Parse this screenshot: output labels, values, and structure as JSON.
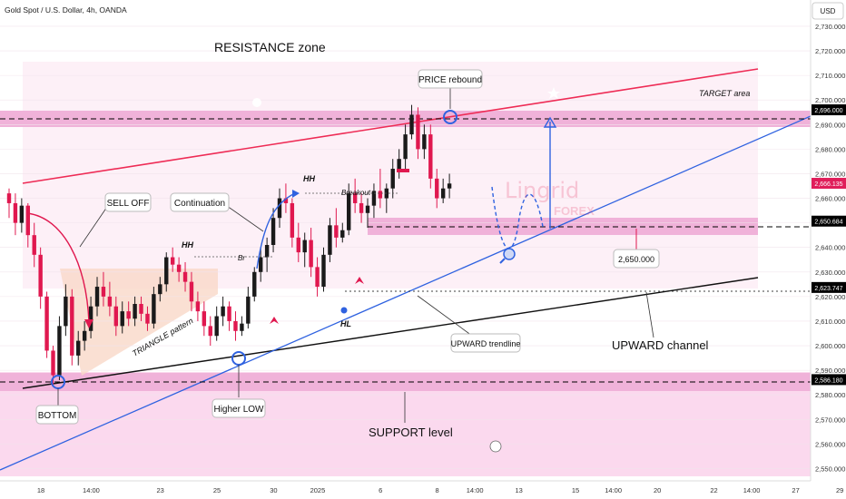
{
  "header": {
    "symbol": "Gold Spot / U.S. Dollar, 4h, OANDA",
    "currency_button": "USD"
  },
  "watermark": {
    "brand": "Lingrid",
    "sub": "FOREX"
  },
  "chart_data": {
    "type": "candlestick",
    "ylim": [
      2545,
      2737
    ],
    "price_ticks": [
      2730,
      2720,
      2710,
      2700,
      2690,
      2680,
      2670,
      2660,
      2650,
      2640,
      2630,
      2620,
      2610,
      2600,
      2590,
      2580,
      2570,
      2560,
      2550
    ],
    "price_tick_labels": [
      "2,730.000",
      "2,720.000",
      "2,710.000",
      "2,700.000",
      "2,690.000",
      "2,680.000",
      "2,670.000",
      "2,660.000",
      "2,650.000",
      "2,640.000",
      "2,630.000",
      "2,620.000",
      "2,610.000",
      "2,600.000",
      "2,590.000",
      "2,580.000",
      "2,570.000",
      "2,560.000",
      "2,550.000"
    ],
    "time_labels": [
      {
        "label": "18",
        "bar": 0
      },
      {
        "label": "14:00",
        "bar": 8
      },
      {
        "label": "23",
        "bar": 19
      },
      {
        "label": "25",
        "bar": 28
      },
      {
        "label": "30",
        "bar": 37
      },
      {
        "label": "2025",
        "bar": 44
      },
      {
        "label": "6",
        "bar": 54
      },
      {
        "label": "8",
        "bar": 63
      },
      {
        "label": "14:00",
        "bar": 69
      },
      {
        "label": "13",
        "bar": 76
      },
      {
        "label": "15",
        "bar": 85
      },
      {
        "label": "14:00",
        "bar": 91
      },
      {
        "label": "20",
        "bar": 98
      },
      {
        "label": "22",
        "bar": 107
      },
      {
        "label": "14:00",
        "bar": 113
      },
      {
        "label": "27",
        "bar": 120
      },
      {
        "label": "29",
        "bar": 127
      }
    ],
    "price_markers": [
      {
        "label": "2,696.000",
        "price": 2696,
        "color": "#000000"
      },
      {
        "label": "2,666.135",
        "price": 2666.1,
        "color": "#e01e5a"
      },
      {
        "label": "2,650.684",
        "price": 2650.7,
        "color": "#000000"
      },
      {
        "label": "2,623.747",
        "price": 2623.7,
        "color": "#000000"
      },
      {
        "label": "2,586.180",
        "price": 2586.2,
        "color": "#000000"
      }
    ],
    "candles": [
      [
        2662,
        2664,
        2652,
        2658
      ],
      [
        2658,
        2662,
        2645,
        2650
      ],
      [
        2650,
        2660,
        2646,
        2657
      ],
      [
        2657,
        2658,
        2640,
        2645
      ],
      [
        2645,
        2650,
        2632,
        2637
      ],
      [
        2637,
        2640,
        2615,
        2620
      ],
      [
        2620,
        2622,
        2595,
        2598
      ],
      [
        2598,
        2600,
        2584,
        2588
      ],
      [
        2588,
        2612,
        2586,
        2608
      ],
      [
        2608,
        2625,
        2604,
        2620
      ],
      [
        2620,
        2623,
        2592,
        2596
      ],
      [
        2596,
        2606,
        2592,
        2602
      ],
      [
        2602,
        2610,
        2598,
        2606
      ],
      [
        2606,
        2620,
        2603,
        2616
      ],
      [
        2616,
        2628,
        2612,
        2624
      ],
      [
        2624,
        2630,
        2616,
        2620
      ],
      [
        2620,
        2626,
        2612,
        2616
      ],
      [
        2616,
        2620,
        2604,
        2608
      ],
      [
        2608,
        2618,
        2605,
        2614
      ],
      [
        2614,
        2618,
        2608,
        2611
      ],
      [
        2611,
        2620,
        2608,
        2617
      ],
      [
        2617,
        2620,
        2610,
        2613
      ],
      [
        2613,
        2616,
        2606,
        2609
      ],
      [
        2609,
        2624,
        2607,
        2621
      ],
      [
        2621,
        2628,
        2618,
        2625
      ],
      [
        2625,
        2638,
        2622,
        2636
      ],
      [
        2636,
        2640,
        2630,
        2633
      ],
      [
        2633,
        2636,
        2626,
        2630
      ],
      [
        2630,
        2634,
        2622,
        2626
      ],
      [
        2626,
        2630,
        2614,
        2618
      ],
      [
        2618,
        2622,
        2610,
        2614
      ],
      [
        2614,
        2618,
        2604,
        2608
      ],
      [
        2608,
        2612,
        2600,
        2604
      ],
      [
        2604,
        2616,
        2602,
        2612
      ],
      [
        2612,
        2620,
        2608,
        2616
      ],
      [
        2616,
        2618,
        2606,
        2610
      ],
      [
        2610,
        2614,
        2602,
        2606
      ],
      [
        2606,
        2612,
        2604,
        2609
      ],
      [
        2609,
        2624,
        2607,
        2620
      ],
      [
        2620,
        2632,
        2618,
        2630
      ],
      [
        2630,
        2640,
        2626,
        2636
      ],
      [
        2636,
        2644,
        2630,
        2641
      ],
      [
        2641,
        2656,
        2638,
        2652
      ],
      [
        2652,
        2664,
        2648,
        2660
      ],
      [
        2660,
        2666,
        2654,
        2658
      ],
      [
        2658,
        2660,
        2640,
        2644
      ],
      [
        2644,
        2650,
        2634,
        2638
      ],
      [
        2638,
        2646,
        2632,
        2643
      ],
      [
        2643,
        2648,
        2628,
        2632
      ],
      [
        2632,
        2636,
        2620,
        2624
      ],
      [
        2624,
        2640,
        2622,
        2637
      ],
      [
        2637,
        2652,
        2634,
        2649
      ],
      [
        2649,
        2656,
        2640,
        2644
      ],
      [
        2644,
        2650,
        2642,
        2647
      ],
      [
        2647,
        2666,
        2645,
        2662
      ],
      [
        2662,
        2668,
        2654,
        2658
      ],
      [
        2658,
        2662,
        2650,
        2654
      ],
      [
        2654,
        2660,
        2648,
        2657
      ],
      [
        2657,
        2666,
        2652,
        2663
      ],
      [
        2663,
        2672,
        2656,
        2660
      ],
      [
        2660,
        2666,
        2654,
        2664
      ],
      [
        2664,
        2676,
        2660,
        2672
      ],
      [
        2672,
        2680,
        2668,
        2676
      ],
      [
        2676,
        2690,
        2672,
        2686
      ],
      [
        2686,
        2698,
        2684,
        2694
      ],
      [
        2694,
        2697,
        2676,
        2680
      ],
      [
        2680,
        2690,
        2676,
        2686
      ],
      [
        2686,
        2690,
        2664,
        2668
      ],
      [
        2668,
        2672,
        2656,
        2660
      ],
      [
        2660,
        2668,
        2658,
        2664
      ],
      [
        2664,
        2670,
        2660,
        2666
      ]
    ],
    "annotations": {
      "resistance_zone": "RESISTANCE zone",
      "target_area": "TARGET area",
      "price_rebound": "PRICE rebound",
      "sell_off": "SELL OFF",
      "continuation": "Continuation",
      "hh1": "HH",
      "hh2": "HH",
      "breakout": "Breakout",
      "br": "Br",
      "hl": "HL",
      "triangle": "TRIANGLE pattern",
      "bottom": "BOTTOM",
      "higher_low": "Higher LOW",
      "upward_trendline": "UPWARD trendline",
      "upward_channel": "UPWARD channel",
      "support_level": "SUPPORT level",
      "target_price": "2,650.000"
    }
  },
  "colors": {
    "bull": "#1a1a1a",
    "bear": "#e0184f",
    "trendline": "#2f62e0",
    "channel_top": "#ee2b55",
    "zone": "#f4b6de"
  }
}
